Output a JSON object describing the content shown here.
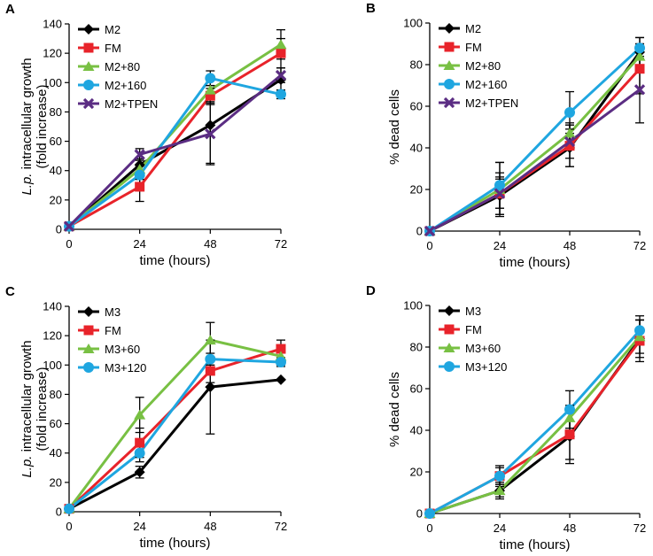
{
  "figure_title": "",
  "series_colors": {
    "M2": "#000000",
    "M3": "#000000",
    "FM": "#e8232a",
    "M2+80": "#78c043",
    "M3+60": "#78c043",
    "M2+160": "#1fa6e0",
    "M3+120": "#1fa6e0",
    "M2+TPEN": "#5b2d83"
  },
  "chart_data": [
    {
      "panel": "A",
      "type": "line",
      "x": [
        0,
        24,
        48,
        72
      ],
      "xticks": [
        "0",
        "24",
        "48",
        "72"
      ],
      "xlim": [
        0,
        72
      ],
      "xlabel": "time (hours)",
      "ylabel_italic": "L.p.",
      "ylabel_rest": " intracellular growth",
      "ylabel_line2": "(fold increase)",
      "ylim": [
        0,
        140
      ],
      "yticks": [
        "0",
        "20",
        "40",
        "60",
        "80",
        "100",
        "120",
        "140"
      ],
      "legend_position": "top-left",
      "series": [
        {
          "name": "M2",
          "marker": "diamond",
          "values": [
            2,
            44,
            71,
            102
          ],
          "errors": [
            0,
            0,
            27,
            8
          ]
        },
        {
          "name": "FM",
          "marker": "square",
          "values": [
            2,
            29,
            91,
            120
          ],
          "errors": [
            0,
            10,
            5,
            10
          ]
        },
        {
          "name": "M2+80",
          "marker": "triangle",
          "values": [
            2,
            41,
            95,
            126
          ],
          "errors": [
            0,
            7,
            8,
            10
          ]
        },
        {
          "name": "M2+160",
          "marker": "circle",
          "values": [
            2,
            37,
            103,
            92
          ],
          "errors": [
            0,
            6,
            5,
            3
          ]
        },
        {
          "name": "M2+TPEN",
          "marker": "x",
          "values": [
            2,
            51,
            65,
            105
          ],
          "errors": [
            0,
            4,
            20,
            5
          ]
        }
      ]
    },
    {
      "panel": "B",
      "type": "line",
      "x": [
        0,
        24,
        48,
        72
      ],
      "xticks": [
        "0",
        "24",
        "48",
        "72"
      ],
      "xlim": [
        0,
        72
      ],
      "xlabel": "time (hours)",
      "ylabel_italic": "",
      "ylabel_rest": "% dead cells",
      "ylabel_line2": "",
      "ylim": [
        0,
        100
      ],
      "yticks": [
        "0",
        "20",
        "40",
        "60",
        "80",
        "100"
      ],
      "legend_position": "top-left",
      "series": [
        {
          "name": "M2",
          "marker": "diamond",
          "values": [
            0,
            17,
            40,
            86
          ],
          "errors": [
            0,
            9,
            9,
            7
          ]
        },
        {
          "name": "FM",
          "marker": "square",
          "values": [
            0,
            18,
            41,
            78
          ],
          "errors": [
            0,
            7,
            10,
            12
          ]
        },
        {
          "name": "M2+80",
          "marker": "triangle",
          "values": [
            0,
            20,
            47,
            84
          ],
          "errors": [
            0,
            13,
            5,
            6
          ]
        },
        {
          "name": "M2+160",
          "marker": "circle",
          "values": [
            0,
            22,
            57,
            88
          ],
          "errors": [
            0,
            11,
            10,
            5
          ]
        },
        {
          "name": "M2+TPEN",
          "marker": "x",
          "values": [
            0,
            18,
            43,
            68
          ],
          "errors": [
            0,
            10,
            8,
            16
          ]
        }
      ]
    },
    {
      "panel": "C",
      "type": "line",
      "x": [
        0,
        24,
        48,
        72
      ],
      "xticks": [
        "0",
        "24",
        "48",
        "72"
      ],
      "xlim": [
        0,
        72
      ],
      "xlabel": "time (hours)",
      "ylabel_italic": "L.p.",
      "ylabel_rest": " intracellular growth",
      "ylabel_line2": "(fold increase)",
      "ylim": [
        0,
        140
      ],
      "yticks": [
        "0",
        "20",
        "40",
        "60",
        "80",
        "100",
        "120",
        "140"
      ],
      "legend_position": "top-left",
      "series": [
        {
          "name": "M3",
          "marker": "diamond",
          "values": [
            2,
            27,
            85,
            90
          ],
          "errors": [
            0,
            4,
            32,
            0
          ]
        },
        {
          "name": "FM",
          "marker": "square",
          "values": [
            2,
            47,
            96,
            111
          ],
          "errors": [
            0,
            10,
            8,
            6
          ]
        },
        {
          "name": "M3+60",
          "marker": "triangle",
          "values": [
            2,
            66,
            117,
            106
          ],
          "errors": [
            0,
            12,
            12,
            6
          ]
        },
        {
          "name": "M3+120",
          "marker": "circle",
          "values": [
            2,
            40,
            104,
            102
          ],
          "errors": [
            0,
            6,
            4,
            3
          ]
        }
      ]
    },
    {
      "panel": "D",
      "type": "line",
      "x": [
        0,
        24,
        48,
        72
      ],
      "xticks": [
        "0",
        "24",
        "48",
        "72"
      ],
      "xlim": [
        0,
        72
      ],
      "xlabel": "time (hours)",
      "ylabel_italic": "",
      "ylabel_rest": "% dead cells",
      "ylabel_line2": "",
      "ylim": [
        0,
        100
      ],
      "yticks": [
        "0",
        "20",
        "40",
        "60",
        "80",
        "100"
      ],
      "legend_position": "top-left",
      "series": [
        {
          "name": "M3",
          "marker": "diamond",
          "values": [
            0,
            11,
            37,
            84
          ],
          "errors": [
            0,
            4,
            13,
            9
          ]
        },
        {
          "name": "FM",
          "marker": "square",
          "values": [
            0,
            18,
            38,
            83
          ],
          "errors": [
            0,
            5,
            12,
            10
          ]
        },
        {
          "name": "M3+60",
          "marker": "triangle",
          "values": [
            0,
            11,
            46,
            85
          ],
          "errors": [
            0,
            3,
            6,
            8
          ]
        },
        {
          "name": "M3+120",
          "marker": "circle",
          "values": [
            0,
            18,
            50,
            88
          ],
          "errors": [
            0,
            4,
            9,
            7
          ]
        }
      ]
    }
  ]
}
